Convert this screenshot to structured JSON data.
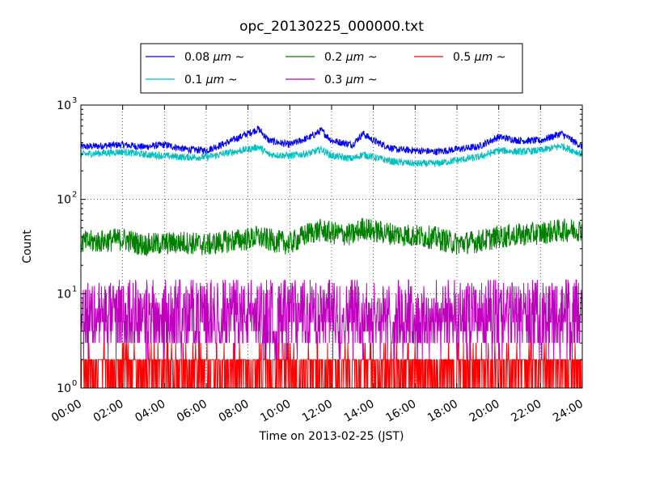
{
  "chart_data": {
    "type": "line",
    "title": "opc_20130225_000000.txt",
    "xlabel": "Time on 2013-02-25 (JST)",
    "ylabel": "Count",
    "y_scale": "log",
    "ylim": [
      1,
      1000
    ],
    "xlim": [
      "00:00",
      "24:00"
    ],
    "x_ticks": [
      "00:00",
      "02:00",
      "04:00",
      "06:00",
      "08:00",
      "10:00",
      "12:00",
      "14:00",
      "16:00",
      "18:00",
      "20:00",
      "22:00",
      "24:00"
    ],
    "y_ticks": [
      {
        "base": "10",
        "exp": "0",
        "value": 1
      },
      {
        "base": "10",
        "exp": "1",
        "value": 10
      },
      {
        "base": "10",
        "exp": "2",
        "value": 100
      },
      {
        "base": "10",
        "exp": "3",
        "value": 1000
      }
    ],
    "grid": true,
    "legend_position": "top-center",
    "x_hours": [
      0,
      1,
      2,
      3,
      4,
      5,
      6,
      7,
      8,
      8.5,
      9,
      10,
      11,
      11.5,
      12,
      13,
      13.5,
      14,
      15,
      16,
      17,
      18,
      19,
      20,
      21,
      22,
      23,
      24
    ],
    "series": [
      {
        "name_prefix": "0.08 ",
        "name_unit": "μm",
        "name_suffix": " ~",
        "color": "#0000ff",
        "noise": 0.04,
        "values": [
          360,
          370,
          380,
          360,
          380,
          340,
          330,
          400,
          500,
          560,
          420,
          380,
          460,
          540,
          420,
          380,
          500,
          420,
          340,
          330,
          320,
          340,
          360,
          460,
          420,
          420,
          500,
          360
        ]
      },
      {
        "name_prefix": "0.1 ",
        "name_unit": "μm",
        "name_suffix": " ~",
        "color": "#00bfbf",
        "noise": 0.04,
        "values": [
          300,
          310,
          320,
          300,
          290,
          280,
          280,
          310,
          340,
          360,
          300,
          290,
          310,
          340,
          290,
          270,
          300,
          280,
          250,
          240,
          240,
          260,
          280,
          330,
          320,
          330,
          370,
          300
        ]
      },
      {
        "name_prefix": "0.2 ",
        "name_unit": "μm",
        "name_suffix": " ~",
        "color": "#008000",
        "noise": 0.13,
        "values": [
          35,
          36,
          38,
          33,
          34,
          35,
          33,
          36,
          38,
          40,
          37,
          34,
          45,
          47,
          44,
          42,
          50,
          46,
          43,
          41,
          39,
          34,
          36,
          40,
          42,
          44,
          47,
          48
        ]
      },
      {
        "name_prefix": "0.3 ",
        "name_unit": "μm",
        "name_suffix": " ~",
        "color": "#bf00bf",
        "noise": 0.35,
        "values": [
          6,
          6,
          6,
          6,
          5.5,
          5.5,
          6,
          6,
          6,
          6,
          6,
          6,
          6,
          6,
          6,
          6,
          6,
          6,
          5.5,
          5.5,
          5.5,
          6,
          6,
          6,
          6,
          6,
          6,
          6
        ]
      },
      {
        "name_prefix": "0.5 ",
        "name_unit": "μm",
        "name_suffix": " ~",
        "color": "#ff0000",
        "noise": 0.0,
        "values": [
          1.5,
          1.5,
          1.5,
          1.5,
          1.5,
          1.5,
          1.5,
          1.5,
          1.5,
          1.5,
          1.5,
          1.5,
          1.5,
          1.5,
          1.5,
          1.5,
          1.5,
          1.5,
          1.5,
          1.5,
          1.5,
          1.5,
          1.5,
          1.5,
          1.5,
          1.5,
          1.5,
          1.5
        ]
      }
    ]
  }
}
